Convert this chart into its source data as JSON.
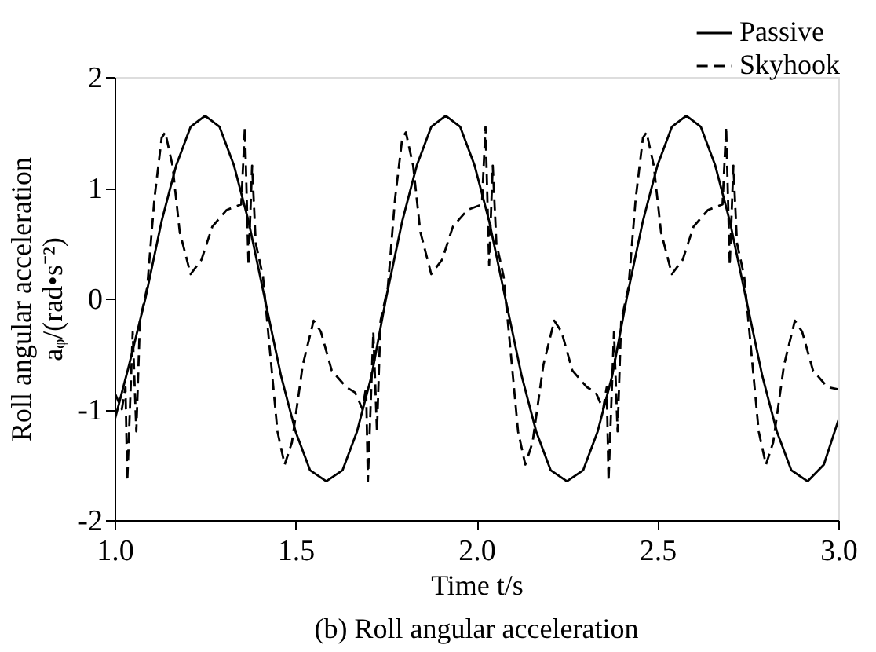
{
  "chart_data": {
    "type": "line",
    "title": "(b) Roll angular acceleration",
    "xlabel": "Time t/s",
    "ylabel": [
      "Roll angular acceleration",
      "aᵩ/(rad•s⁻²)"
    ],
    "xlim": [
      1.0,
      3.0
    ],
    "xticks": [
      {
        "value": 1.0,
        "label": "1.0"
      },
      {
        "value": 1.5,
        "label": "1.5"
      },
      {
        "value": 2.0,
        "label": "2.0"
      },
      {
        "value": 2.5,
        "label": "2.5"
      },
      {
        "value": 3.0,
        "label": "3.0"
      }
    ],
    "ylim": [
      -2,
      2
    ],
    "yticks": [
      -2,
      -1,
      0,
      1,
      2
    ],
    "grid": false,
    "legend": "top right",
    "marker": "none",
    "series": [
      {
        "name": "Passive",
        "color": "#000000",
        "line_style": "solid",
        "x": [
          1.0,
          1.04,
          1.085,
          1.13,
          1.17,
          1.21,
          1.25,
          1.29,
          1.33,
          1.37,
          1.415,
          1.46,
          1.5,
          1.54,
          1.585,
          1.63,
          1.67,
          1.71,
          1.75,
          1.795,
          1.835,
          1.875,
          1.915,
          1.955,
          1.995,
          2.035,
          2.08,
          2.125,
          2.165,
          2.205,
          2.25,
          2.295,
          2.335,
          2.375,
          2.415,
          2.46,
          2.5,
          2.54,
          2.58,
          2.62,
          2.66,
          2.7,
          2.745,
          2.79,
          2.83,
          2.87,
          2.915,
          2.96,
          3.0
        ],
        "values": [
          -1.1,
          -0.6,
          0,
          0.7,
          1.2,
          1.55,
          1.65,
          1.55,
          1.2,
          0.7,
          0,
          -0.7,
          -1.2,
          -1.55,
          -1.65,
          -1.55,
          -1.2,
          -0.7,
          0,
          0.7,
          1.2,
          1.55,
          1.65,
          1.55,
          1.2,
          0.7,
          0,
          -0.7,
          -1.2,
          -1.55,
          -1.65,
          -1.55,
          -1.2,
          -0.7,
          0,
          0.7,
          1.2,
          1.55,
          1.65,
          1.55,
          1.2,
          0.7,
          0,
          -0.7,
          -1.2,
          -1.55,
          -1.65,
          -1.5,
          -1.1
        ]
      },
      {
        "name": "Skyhook",
        "color": "#000000",
        "line_style": "dashed",
        "x": [
          1.0,
          1.02,
          1.03,
          1.035,
          1.05,
          1.06,
          1.07,
          1.09,
          1.11,
          1.13,
          1.14,
          1.16,
          1.18,
          1.21,
          1.24,
          1.27,
          1.31,
          1.35,
          1.36,
          1.37,
          1.38,
          1.39,
          1.41,
          1.43,
          1.45,
          1.47,
          1.49,
          1.52,
          1.55,
          1.57,
          1.6,
          1.64,
          1.665,
          1.685,
          1.695,
          1.7,
          1.715,
          1.725,
          1.735,
          1.755,
          1.775,
          1.795,
          1.805,
          1.825,
          1.845,
          1.875,
          1.905,
          1.935,
          1.975,
          2.015,
          2.025,
          2.035,
          2.045,
          2.055,
          2.075,
          2.095,
          2.115,
          2.135,
          2.155,
          2.185,
          2.215,
          2.235,
          2.265,
          2.305,
          2.33,
          2.35,
          2.36,
          2.365,
          2.38,
          2.39,
          2.4,
          2.42,
          2.44,
          2.46,
          2.47,
          2.49,
          2.51,
          2.54,
          2.57,
          2.6,
          2.64,
          2.68,
          2.69,
          2.7,
          2.71,
          2.72,
          2.74,
          2.76,
          2.78,
          2.8,
          2.82,
          2.85,
          2.88,
          2.9,
          2.93,
          2.97,
          3.0
        ],
        "values": [
          -0.85,
          -1.0,
          -0.8,
          -1.65,
          -0.3,
          -1.2,
          -0.2,
          0.1,
          0.9,
          1.45,
          1.5,
          1.2,
          0.6,
          0.22,
          0.35,
          0.65,
          0.8,
          0.85,
          1.55,
          0.3,
          1.2,
          0.5,
          0.2,
          -0.5,
          -1.2,
          -1.5,
          -1.3,
          -0.6,
          -0.2,
          -0.3,
          -0.65,
          -0.8,
          -0.85,
          -1.0,
          -0.8,
          -1.65,
          -0.3,
          -1.2,
          -0.2,
          0.1,
          0.9,
          1.45,
          1.5,
          1.2,
          0.6,
          0.22,
          0.35,
          0.65,
          0.8,
          0.85,
          1.55,
          0.3,
          1.2,
          0.5,
          0.2,
          -0.5,
          -1.2,
          -1.5,
          -1.3,
          -0.6,
          -0.2,
          -0.3,
          -0.65,
          -0.8,
          -0.85,
          -1.0,
          -0.8,
          -1.65,
          -0.3,
          -1.2,
          -0.2,
          0.1,
          0.9,
          1.45,
          1.5,
          1.2,
          0.6,
          0.22,
          0.35,
          0.65,
          0.8,
          0.85,
          1.55,
          0.3,
          1.2,
          0.5,
          0.2,
          -0.5,
          -1.2,
          -1.5,
          -1.3,
          -0.6,
          -0.2,
          -0.3,
          -0.65,
          -0.8,
          -0.82
        ]
      }
    ]
  }
}
